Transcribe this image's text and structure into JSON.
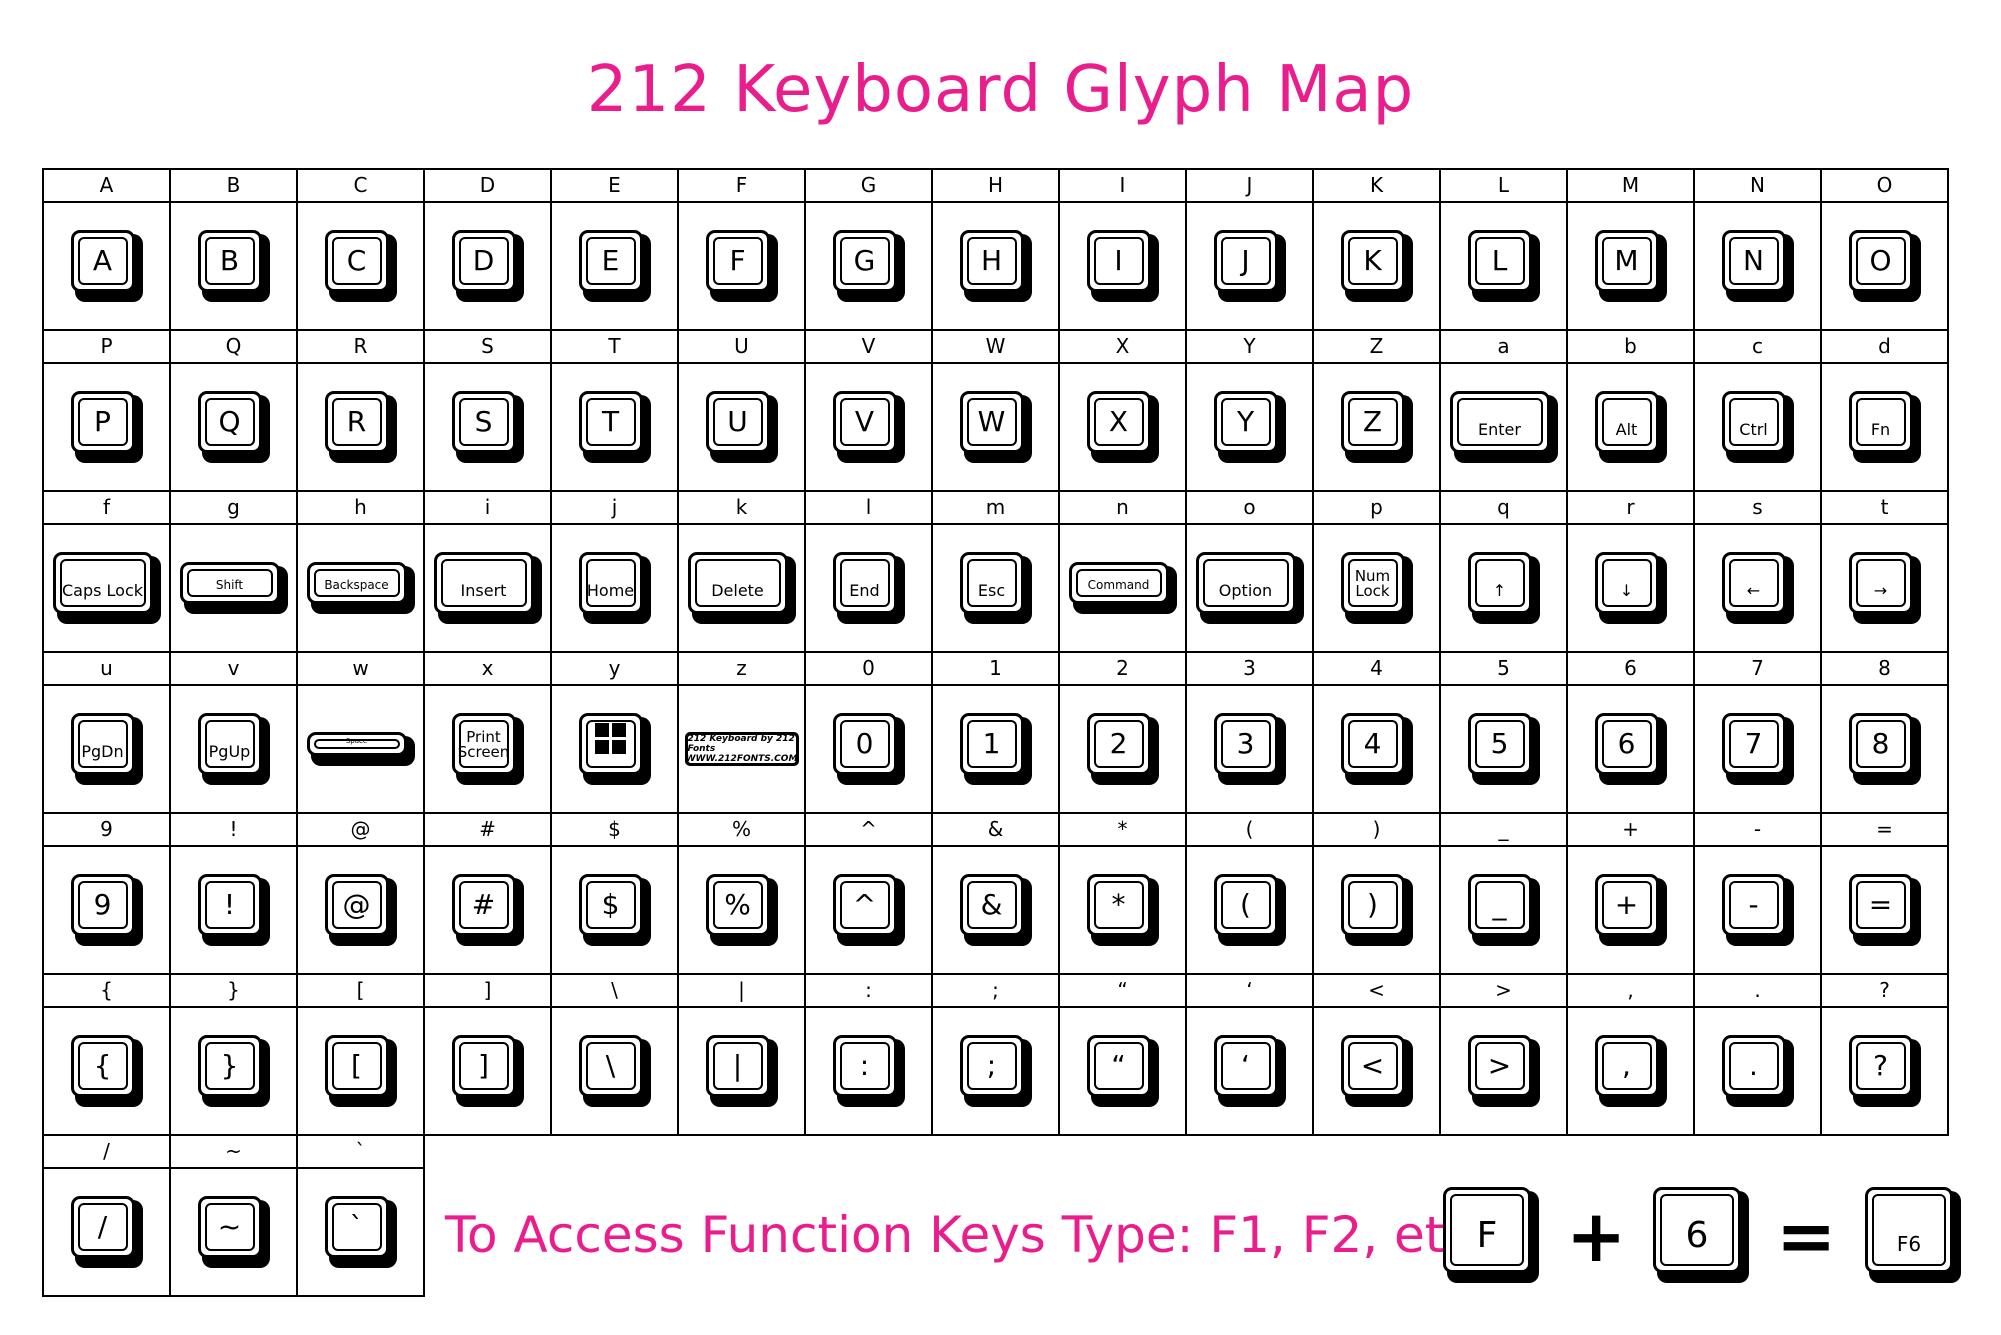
{
  "title": "212 Keyboard Glyph Map",
  "rows": [
    {
      "cells": [
        {
          "label": "A",
          "key": "A"
        },
        {
          "label": "B",
          "key": "B"
        },
        {
          "label": "C",
          "key": "C"
        },
        {
          "label": "D",
          "key": "D"
        },
        {
          "label": "E",
          "key": "E"
        },
        {
          "label": "F",
          "key": "F"
        },
        {
          "label": "G",
          "key": "G"
        },
        {
          "label": "H",
          "key": "H"
        },
        {
          "label": "I",
          "key": "I"
        },
        {
          "label": "J",
          "key": "J"
        },
        {
          "label": "K",
          "key": "K"
        },
        {
          "label": "L",
          "key": "L"
        },
        {
          "label": "M",
          "key": "M"
        },
        {
          "label": "N",
          "key": "N"
        },
        {
          "label": "O",
          "key": "O"
        }
      ]
    },
    {
      "cells": [
        {
          "label": "P",
          "key": "P"
        },
        {
          "label": "Q",
          "key": "Q"
        },
        {
          "label": "R",
          "key": "R"
        },
        {
          "label": "S",
          "key": "S"
        },
        {
          "label": "T",
          "key": "T"
        },
        {
          "label": "U",
          "key": "U"
        },
        {
          "label": "V",
          "key": "V"
        },
        {
          "label": "W",
          "key": "W"
        },
        {
          "label": "X",
          "key": "X"
        },
        {
          "label": "Y",
          "key": "Y"
        },
        {
          "label": "Z",
          "key": "Z"
        },
        {
          "label": "a",
          "key": "Enter",
          "style": "wide-small"
        },
        {
          "label": "b",
          "key": "Alt",
          "style": "small"
        },
        {
          "label": "c",
          "key": "Ctrl",
          "style": "small"
        },
        {
          "label": "d",
          "key": "Fn",
          "style": "small"
        }
      ]
    },
    {
      "cells": [
        {
          "label": "f",
          "key": "Caps Lock",
          "style": "wide-small"
        },
        {
          "label": "g",
          "key": "Shift",
          "style": "flat"
        },
        {
          "label": "h",
          "key": "Backspace",
          "style": "flat"
        },
        {
          "label": "i",
          "key": "Insert",
          "style": "wide-small"
        },
        {
          "label": "j",
          "key": "Home",
          "style": "small"
        },
        {
          "label": "k",
          "key": "Delete",
          "style": "wide-small"
        },
        {
          "label": "l",
          "key": "End",
          "style": "small"
        },
        {
          "label": "m",
          "key": "Esc",
          "style": "small"
        },
        {
          "label": "n",
          "key": "Command",
          "style": "flat"
        },
        {
          "label": "o",
          "key": "Option",
          "style": "wide-small"
        },
        {
          "label": "p",
          "key": "Num\nLock",
          "style": "two"
        },
        {
          "label": "q",
          "key": "↑",
          "style": "small"
        },
        {
          "label": "r",
          "key": "↓",
          "style": "small"
        },
        {
          "label": "s",
          "key": "←",
          "style": "small"
        },
        {
          "label": "t",
          "key": "→",
          "style": "small"
        }
      ]
    },
    {
      "cells": [
        {
          "label": "u",
          "key": "PgDn",
          "style": "small"
        },
        {
          "label": "v",
          "key": "PgUp",
          "style": "small"
        },
        {
          "label": "w",
          "key": "Space",
          "style": "space"
        },
        {
          "label": "x",
          "key": "Print\nScreen",
          "style": "two"
        },
        {
          "label": "y",
          "key": "windows-logo",
          "style": "windows"
        },
        {
          "label": "z",
          "key": "212 Keyboard by 212 Fonts",
          "key2": "WWW.212FONTS.COM",
          "style": "logo"
        },
        {
          "label": "0",
          "key": "0"
        },
        {
          "label": "1",
          "key": "1"
        },
        {
          "label": "2",
          "key": "2"
        },
        {
          "label": "3",
          "key": "3"
        },
        {
          "label": "4",
          "key": "4"
        },
        {
          "label": "5",
          "key": "5"
        },
        {
          "label": "6",
          "key": "6"
        },
        {
          "label": "7",
          "key": "7"
        },
        {
          "label": "8",
          "key": "8"
        }
      ]
    },
    {
      "cells": [
        {
          "label": "9",
          "key": "9"
        },
        {
          "label": "!",
          "key": "!"
        },
        {
          "label": "@",
          "key": "@"
        },
        {
          "label": "#",
          "key": "#"
        },
        {
          "label": "$",
          "key": "$"
        },
        {
          "label": "%",
          "key": "%"
        },
        {
          "label": "^",
          "key": "^"
        },
        {
          "label": "&",
          "key": "&"
        },
        {
          "label": "*",
          "key": "*"
        },
        {
          "label": "(",
          "key": "("
        },
        {
          "label": ")",
          "key": ")"
        },
        {
          "label": "_",
          "key": "_"
        },
        {
          "label": "+",
          "key": "+"
        },
        {
          "label": "-",
          "key": "-"
        },
        {
          "label": "=",
          "key": "="
        }
      ]
    },
    {
      "cells": [
        {
          "label": "{",
          "key": "{"
        },
        {
          "label": "}",
          "key": "}"
        },
        {
          "label": "[",
          "key": "["
        },
        {
          "label": "]",
          "key": "]"
        },
        {
          "label": "\\",
          "key": "\\"
        },
        {
          "label": "|",
          "key": "|"
        },
        {
          "label": ":",
          "key": ":"
        },
        {
          "label": ";",
          "key": ";"
        },
        {
          "label": "“",
          "key": "“"
        },
        {
          "label": "‘",
          "key": "‘"
        },
        {
          "label": "<",
          "key": "<"
        },
        {
          "label": ">",
          "key": ">"
        },
        {
          "label": ",",
          "key": ","
        },
        {
          "label": ".",
          "key": "."
        },
        {
          "label": "?",
          "key": "?"
        }
      ]
    },
    {
      "cells": [
        {
          "label": "/",
          "key": "/"
        },
        {
          "label": "~",
          "key": "~"
        },
        {
          "label": "`",
          "key": "`"
        }
      ]
    }
  ],
  "footer": {
    "text": "To Access Function Keys Type: F1, F2, etc.",
    "key_a": "F",
    "plus": "+",
    "key_b": "6",
    "equals": "=",
    "key_result": "F6"
  },
  "colors": {
    "accent": "#e91e8c"
  }
}
